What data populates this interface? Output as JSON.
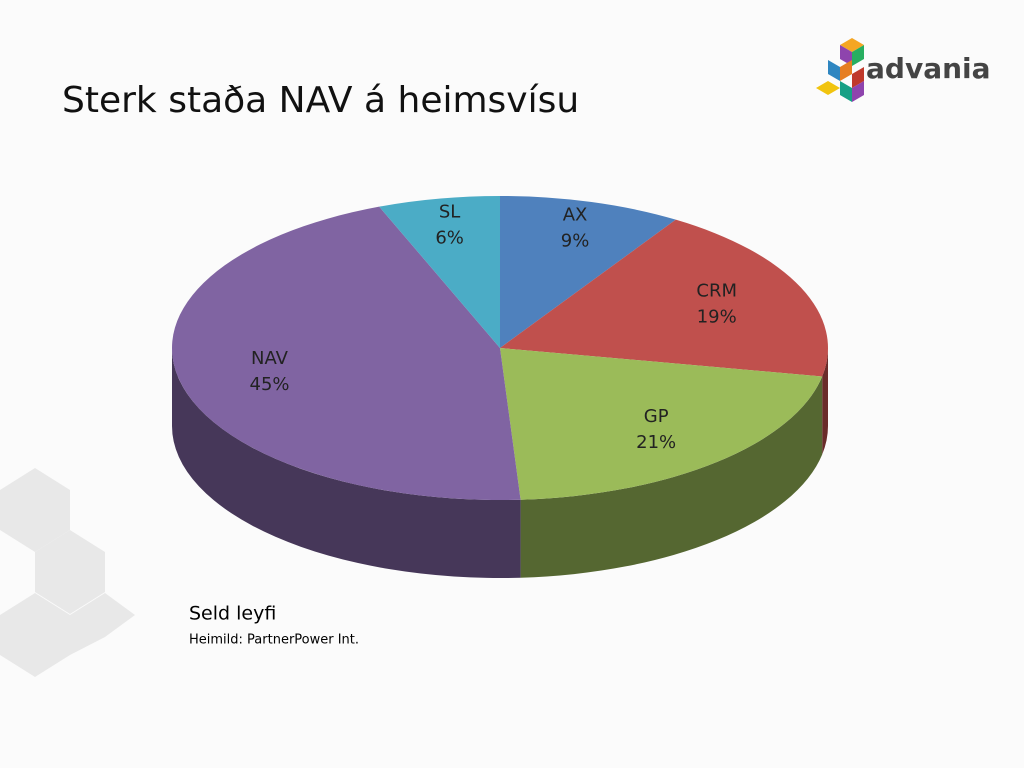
{
  "brand": "advania",
  "chart_data": {
    "type": "pie3d",
    "title": "Sterk staða NAV á heimsvísu",
    "subtitle": "Seld leyfi",
    "source": "Heimild: PartnerPower Int.",
    "categories": [
      "AX",
      "CRM",
      "GP",
      "NAV",
      "SL"
    ],
    "values": [
      9,
      19,
      21,
      45,
      6
    ],
    "value_labels": [
      "9%",
      "19%",
      "21%",
      "45%",
      "6%"
    ],
    "colors": [
      "#4f81bd",
      "#c0504d",
      "#9bbb59",
      "#8064a2",
      "#4bacc6"
    ]
  }
}
